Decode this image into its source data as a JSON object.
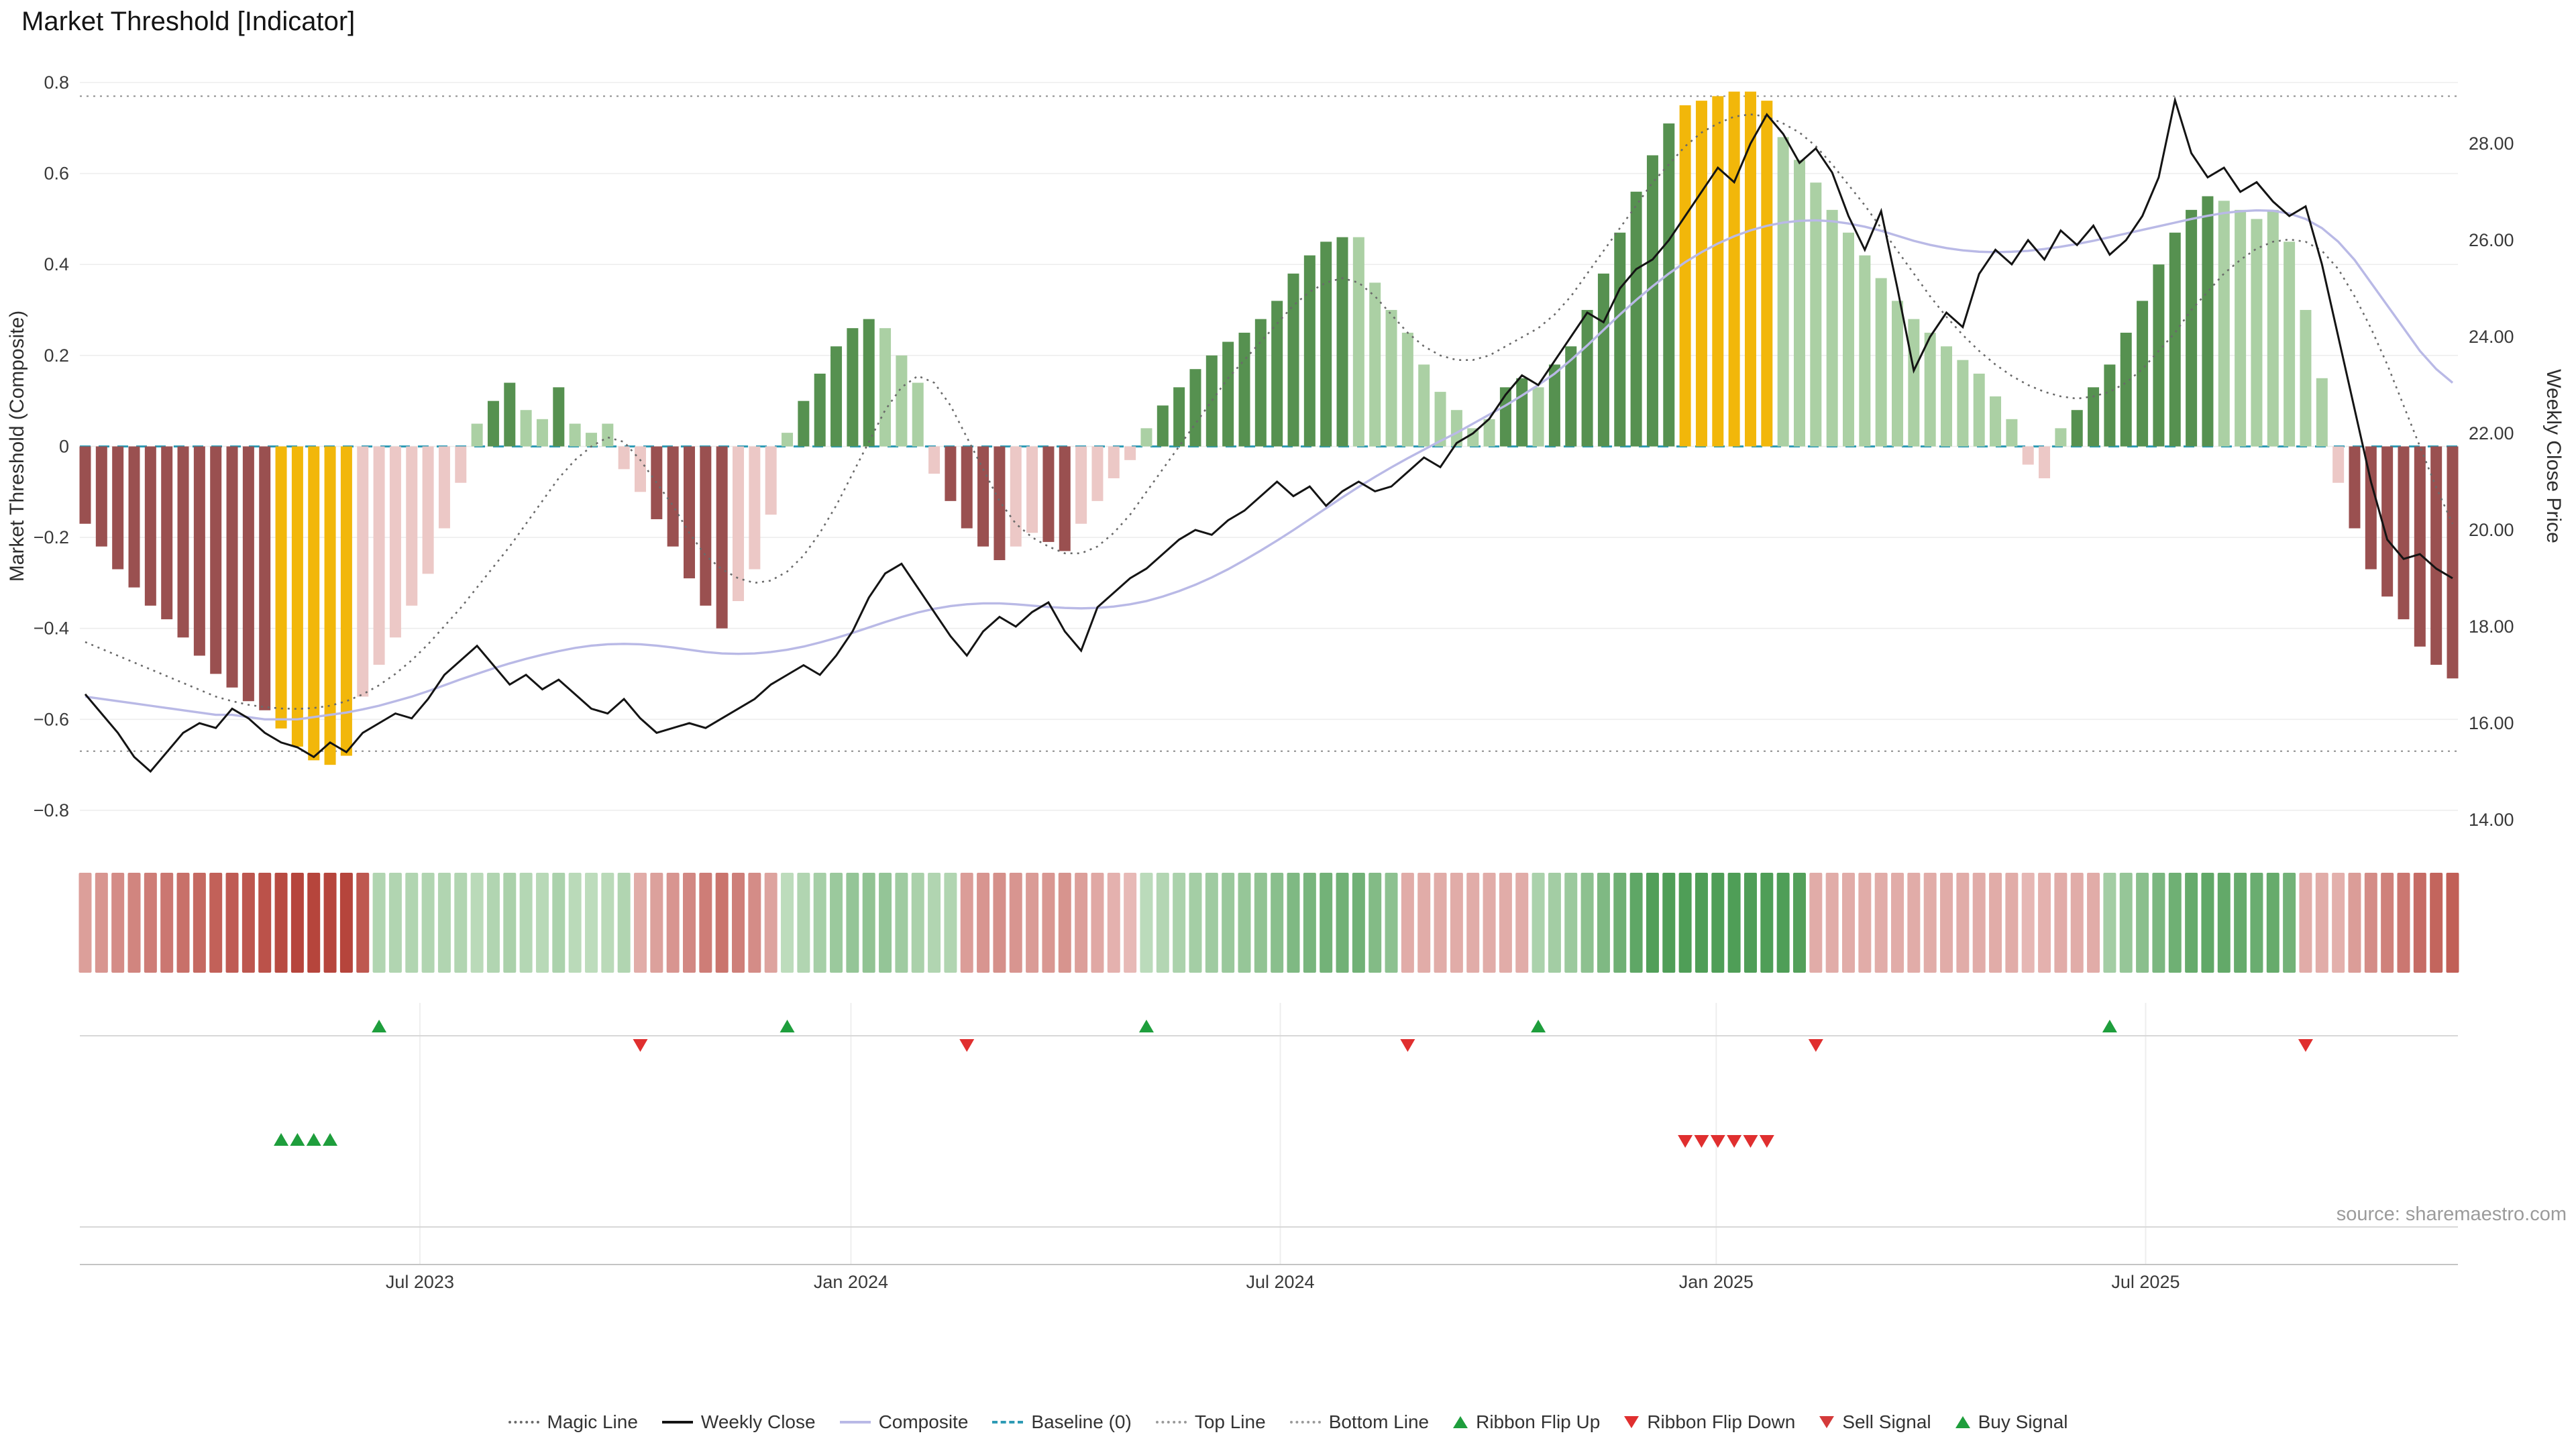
{
  "title": "Market Threshold [Indicator]",
  "source": "source: sharemaestro.com",
  "axes": {
    "left_label": "Market Threshold (Composite)",
    "right_label": "Weekly Close Price",
    "left_ticks": [
      [
        "0.8",
        0.8
      ],
      [
        "0.6",
        0.6
      ],
      [
        "0.4",
        0.4
      ],
      [
        "0.2",
        0.2
      ],
      [
        "0",
        0
      ],
      [
        "−0.2",
        -0.2
      ],
      [
        "−0.4",
        -0.4
      ],
      [
        "−0.6",
        -0.6
      ],
      [
        "−0.8",
        -0.8
      ]
    ],
    "right_ticks": [
      [
        "28.00",
        28
      ],
      [
        "26.00",
        26
      ],
      [
        "24.00",
        24
      ],
      [
        "22.00",
        22
      ],
      [
        "20.00",
        20
      ],
      [
        "18.00",
        18
      ],
      [
        "16.00",
        16
      ],
      [
        "14.00",
        14
      ]
    ],
    "x_ticks": [
      {
        "label": "Jul 2023",
        "week": 20.5
      },
      {
        "label": "Jan 2024",
        "week": 46.9
      },
      {
        "label": "Jul 2024",
        "week": 73.2
      },
      {
        "label": "Jan 2025",
        "week": 99.9
      },
      {
        "label": "Jul 2025",
        "week": 126.2
      }
    ]
  },
  "colors": {
    "bar": {
      "dr": "#9a5050",
      "lr": "#ecc8c6",
      "y": "#f2b70a",
      "lg": "#abd0a4",
      "dg": "#569150"
    },
    "ribbon": {
      "red_dark": "#b6453c",
      "red_light": "#f2d4d2",
      "green_dark": "#4f9e57",
      "green_light": "#d7ebd4"
    },
    "signal_up": "#1e9e3c",
    "signal_down": "#e02f2f",
    "weekly_close": "#141414",
    "composite_line": "#b9b9e6",
    "magic_line": "#6a6a6a",
    "baseline": "#2e9bb5",
    "threshold_lines": "#8c8c8c",
    "grid": "#ededed"
  },
  "chart_data": {
    "type": "bar",
    "frequency": "weekly",
    "x_range": [
      "Feb 2023",
      "Dec 2025"
    ],
    "left_axis": {
      "label": "Market Threshold (Composite)",
      "min": -0.8,
      "max": 0.8
    },
    "right_axis": {
      "label": "Weekly Close Price",
      "min": 14,
      "max": 28
    },
    "top_line_value": 0.77,
    "bottom_line_value": -0.67,
    "baseline_value": 0,
    "threshold_bars": [
      [
        -0.17,
        "dr"
      ],
      [
        -0.22,
        "dr"
      ],
      [
        -0.27,
        "dr"
      ],
      [
        -0.31,
        "dr"
      ],
      [
        -0.35,
        "dr"
      ],
      [
        -0.38,
        "dr"
      ],
      [
        -0.42,
        "dr"
      ],
      [
        -0.46,
        "dr"
      ],
      [
        -0.5,
        "dr"
      ],
      [
        -0.53,
        "dr"
      ],
      [
        -0.56,
        "dr"
      ],
      [
        -0.58,
        "dr"
      ],
      [
        -0.62,
        "y"
      ],
      [
        -0.66,
        "y"
      ],
      [
        -0.69,
        "y"
      ],
      [
        -0.7,
        "y"
      ],
      [
        -0.68,
        "y"
      ],
      [
        -0.55,
        "lr"
      ],
      [
        -0.48,
        "lr"
      ],
      [
        -0.42,
        "lr"
      ],
      [
        -0.35,
        "lr"
      ],
      [
        -0.28,
        "lr"
      ],
      [
        -0.18,
        "lr"
      ],
      [
        -0.08,
        "lr"
      ],
      [
        0.05,
        "lg"
      ],
      [
        0.1,
        "dg"
      ],
      [
        0.14,
        "dg"
      ],
      [
        0.08,
        "lg"
      ],
      [
        0.06,
        "lg"
      ],
      [
        0.13,
        "dg"
      ],
      [
        0.05,
        "lg"
      ],
      [
        0.03,
        "lg"
      ],
      [
        0.05,
        "lg"
      ],
      [
        -0.05,
        "lr"
      ],
      [
        -0.1,
        "lr"
      ],
      [
        -0.16,
        "dr"
      ],
      [
        -0.22,
        "dr"
      ],
      [
        -0.29,
        "dr"
      ],
      [
        -0.35,
        "dr"
      ],
      [
        -0.4,
        "dr"
      ],
      [
        -0.34,
        "lr"
      ],
      [
        -0.27,
        "lr"
      ],
      [
        -0.15,
        "lr"
      ],
      [
        0.03,
        "lg"
      ],
      [
        0.1,
        "dg"
      ],
      [
        0.16,
        "dg"
      ],
      [
        0.22,
        "dg"
      ],
      [
        0.26,
        "dg"
      ],
      [
        0.28,
        "dg"
      ],
      [
        0.26,
        "lg"
      ],
      [
        0.2,
        "lg"
      ],
      [
        0.14,
        "lg"
      ],
      [
        -0.06,
        "lr"
      ],
      [
        -0.12,
        "dr"
      ],
      [
        -0.18,
        "dr"
      ],
      [
        -0.22,
        "dr"
      ],
      [
        -0.25,
        "dr"
      ],
      [
        -0.22,
        "lr"
      ],
      [
        -0.19,
        "lr"
      ],
      [
        -0.21,
        "dr"
      ],
      [
        -0.23,
        "dr"
      ],
      [
        -0.17,
        "lr"
      ],
      [
        -0.12,
        "lr"
      ],
      [
        -0.07,
        "lr"
      ],
      [
        -0.03,
        "lr"
      ],
      [
        0.04,
        "lg"
      ],
      [
        0.09,
        "dg"
      ],
      [
        0.13,
        "dg"
      ],
      [
        0.17,
        "dg"
      ],
      [
        0.2,
        "dg"
      ],
      [
        0.23,
        "dg"
      ],
      [
        0.25,
        "dg"
      ],
      [
        0.28,
        "dg"
      ],
      [
        0.32,
        "dg"
      ],
      [
        0.38,
        "dg"
      ],
      [
        0.42,
        "dg"
      ],
      [
        0.45,
        "dg"
      ],
      [
        0.46,
        "dg"
      ],
      [
        0.46,
        "lg"
      ],
      [
        0.36,
        "lg"
      ],
      [
        0.3,
        "lg"
      ],
      [
        0.25,
        "lg"
      ],
      [
        0.18,
        "lg"
      ],
      [
        0.12,
        "lg"
      ],
      [
        0.08,
        "lg"
      ],
      [
        0.04,
        "lg"
      ],
      [
        0.06,
        "lg"
      ],
      [
        0.13,
        "dg"
      ],
      [
        0.15,
        "dg"
      ],
      [
        0.13,
        "lg"
      ],
      [
        0.18,
        "dg"
      ],
      [
        0.22,
        "dg"
      ],
      [
        0.3,
        "dg"
      ],
      [
        0.38,
        "dg"
      ],
      [
        0.47,
        "dg"
      ],
      [
        0.56,
        "dg"
      ],
      [
        0.64,
        "dg"
      ],
      [
        0.71,
        "dg"
      ],
      [
        0.75,
        "y"
      ],
      [
        0.76,
        "y"
      ],
      [
        0.77,
        "y"
      ],
      [
        0.78,
        "y"
      ],
      [
        0.78,
        "y"
      ],
      [
        0.76,
        "y"
      ],
      [
        0.68,
        "lg"
      ],
      [
        0.63,
        "lg"
      ],
      [
        0.58,
        "lg"
      ],
      [
        0.52,
        "lg"
      ],
      [
        0.47,
        "lg"
      ],
      [
        0.42,
        "lg"
      ],
      [
        0.37,
        "lg"
      ],
      [
        0.32,
        "lg"
      ],
      [
        0.28,
        "lg"
      ],
      [
        0.25,
        "lg"
      ],
      [
        0.22,
        "lg"
      ],
      [
        0.19,
        "lg"
      ],
      [
        0.16,
        "lg"
      ],
      [
        0.11,
        "lg"
      ],
      [
        0.06,
        "lg"
      ],
      [
        -0.04,
        "lr"
      ],
      [
        -0.07,
        "lr"
      ],
      [
        0.04,
        "lg"
      ],
      [
        0.08,
        "dg"
      ],
      [
        0.13,
        "dg"
      ],
      [
        0.18,
        "dg"
      ],
      [
        0.25,
        "dg"
      ],
      [
        0.32,
        "dg"
      ],
      [
        0.4,
        "dg"
      ],
      [
        0.47,
        "dg"
      ],
      [
        0.52,
        "dg"
      ],
      [
        0.55,
        "dg"
      ],
      [
        0.54,
        "lg"
      ],
      [
        0.52,
        "lg"
      ],
      [
        0.5,
        "lg"
      ],
      [
        0.52,
        "lg"
      ],
      [
        0.45,
        "lg"
      ],
      [
        0.3,
        "lg"
      ],
      [
        0.15,
        "lg"
      ],
      [
        -0.08,
        "lr"
      ],
      [
        -0.18,
        "dr"
      ],
      [
        -0.27,
        "dr"
      ],
      [
        -0.33,
        "dr"
      ],
      [
        -0.38,
        "dr"
      ],
      [
        -0.44,
        "dr"
      ],
      [
        -0.48,
        "dr"
      ],
      [
        -0.51,
        "dr"
      ]
    ],
    "weekly_close": [
      16.6,
      16.2,
      15.8,
      15.3,
      15.0,
      15.4,
      15.8,
      16.0,
      15.9,
      16.3,
      16.1,
      15.8,
      15.6,
      15.5,
      15.3,
      15.6,
      15.4,
      15.8,
      16.0,
      16.2,
      16.1,
      16.5,
      17.0,
      17.3,
      17.6,
      17.2,
      16.8,
      17.0,
      16.7,
      16.9,
      16.6,
      16.3,
      16.2,
      16.5,
      16.1,
      15.8,
      15.9,
      16.0,
      15.9,
      16.1,
      16.3,
      16.5,
      16.8,
      17.0,
      17.2,
      17.0,
      17.4,
      17.9,
      18.6,
      19.1,
      19.3,
      18.8,
      18.3,
      17.8,
      17.4,
      17.9,
      18.2,
      18.0,
      18.3,
      18.5,
      17.9,
      17.5,
      18.4,
      18.7,
      19.0,
      19.2,
      19.5,
      19.8,
      20.0,
      19.9,
      20.2,
      20.4,
      20.7,
      21.0,
      20.7,
      20.9,
      20.5,
      20.8,
      21.0,
      20.8,
      20.9,
      21.2,
      21.5,
      21.3,
      21.8,
      22.0,
      22.3,
      22.8,
      23.2,
      23.0,
      23.5,
      24.0,
      24.5,
      24.3,
      25.0,
      25.4,
      25.6,
      26.0,
      26.5,
      27.0,
      27.5,
      27.2,
      28.0,
      28.6,
      28.2,
      27.6,
      27.9,
      27.4,
      26.5,
      25.8,
      26.6,
      25.0,
      23.3,
      24.0,
      24.5,
      24.2,
      25.3,
      25.8,
      25.5,
      26.0,
      25.6,
      26.2,
      25.9,
      26.3,
      25.7,
      26.0,
      26.5,
      27.3,
      28.9,
      27.8,
      27.3,
      27.5,
      27.0,
      27.2,
      26.8,
      26.5,
      26.7,
      25.5,
      24.0,
      22.5,
      21.0,
      19.8,
      19.4,
      19.5,
      19.2,
      19.0
    ],
    "composite": [
      -0.55,
      -0.555,
      -0.56,
      -0.565,
      -0.57,
      -0.575,
      -0.58,
      -0.585,
      -0.59,
      -0.59,
      -0.595,
      -0.6,
      -0.6,
      -0.6,
      -0.595,
      -0.59,
      -0.585,
      -0.578,
      -0.57,
      -0.56,
      -0.55,
      -0.538,
      -0.525,
      -0.512,
      -0.5,
      -0.488,
      -0.477,
      -0.467,
      -0.458,
      -0.45,
      -0.443,
      -0.438,
      -0.435,
      -0.434,
      -0.435,
      -0.438,
      -0.442,
      -0.447,
      -0.452,
      -0.455,
      -0.456,
      -0.455,
      -0.452,
      -0.447,
      -0.44,
      -0.431,
      -0.421,
      -0.41,
      -0.398,
      -0.386,
      -0.375,
      -0.365,
      -0.357,
      -0.351,
      -0.347,
      -0.345,
      -0.345,
      -0.347,
      -0.35,
      -0.353,
      -0.355,
      -0.356,
      -0.355,
      -0.352,
      -0.347,
      -0.34,
      -0.33,
      -0.318,
      -0.304,
      -0.288,
      -0.27,
      -0.25,
      -0.229,
      -0.207,
      -0.184,
      -0.16,
      -0.136,
      -0.112,
      -0.089,
      -0.067,
      -0.046,
      -0.026,
      -0.007,
      0.012,
      0.03,
      0.05,
      0.07,
      0.09,
      0.112,
      0.135,
      0.16,
      0.19,
      0.222,
      0.256,
      0.29,
      0.322,
      0.352,
      0.38,
      0.405,
      0.427,
      0.446,
      0.462,
      0.475,
      0.485,
      0.492,
      0.496,
      0.497,
      0.495,
      0.49,
      0.483,
      0.474,
      0.463,
      0.452,
      0.443,
      0.436,
      0.431,
      0.428,
      0.427,
      0.428,
      0.43,
      0.434,
      0.439,
      0.445,
      0.452,
      0.46,
      0.468,
      0.476,
      0.484,
      0.492,
      0.5,
      0.507,
      0.513,
      0.517,
      0.519,
      0.518,
      0.512,
      0.5,
      0.48,
      0.45,
      0.41,
      0.36,
      0.31,
      0.26,
      0.21,
      0.17,
      0.14
    ],
    "magic_line": [
      -0.43,
      -0.445,
      -0.46,
      -0.475,
      -0.49,
      -0.505,
      -0.52,
      -0.535,
      -0.55,
      -0.56,
      -0.568,
      -0.573,
      -0.576,
      -0.577,
      -0.575,
      -0.57,
      -0.56,
      -0.545,
      -0.525,
      -0.5,
      -0.47,
      -0.435,
      -0.395,
      -0.355,
      -0.31,
      -0.265,
      -0.22,
      -0.17,
      -0.12,
      -0.07,
      -0.03,
      0.0,
      0.02,
      0.01,
      -0.03,
      -0.08,
      -0.13,
      -0.19,
      -0.24,
      -0.27,
      -0.29,
      -0.3,
      -0.295,
      -0.275,
      -0.24,
      -0.19,
      -0.13,
      -0.06,
      0.01,
      0.08,
      0.13,
      0.155,
      0.14,
      0.09,
      0.02,
      -0.05,
      -0.12,
      -0.17,
      -0.2,
      -0.22,
      -0.235,
      -0.235,
      -0.22,
      -0.19,
      -0.15,
      -0.1,
      -0.05,
      0.0,
      0.05,
      0.1,
      0.15,
      0.19,
      0.23,
      0.27,
      0.31,
      0.34,
      0.36,
      0.37,
      0.36,
      0.33,
      0.29,
      0.25,
      0.22,
      0.2,
      0.19,
      0.19,
      0.2,
      0.22,
      0.24,
      0.26,
      0.29,
      0.33,
      0.38,
      0.43,
      0.48,
      0.53,
      0.58,
      0.62,
      0.66,
      0.69,
      0.71,
      0.725,
      0.73,
      0.725,
      0.71,
      0.69,
      0.66,
      0.62,
      0.575,
      0.53,
      0.48,
      0.43,
      0.38,
      0.33,
      0.285,
      0.245,
      0.21,
      0.18,
      0.155,
      0.135,
      0.12,
      0.11,
      0.105,
      0.11,
      0.12,
      0.14,
      0.17,
      0.21,
      0.25,
      0.3,
      0.34,
      0.38,
      0.41,
      0.435,
      0.45,
      0.455,
      0.45,
      0.43,
      0.39,
      0.33,
      0.26,
      0.18,
      0.09,
      0.0,
      -0.09,
      -0.17
    ],
    "ribbon_flip_up_weeks": [
      18,
      43,
      65,
      89,
      124
    ],
    "ribbon_flip_down_weeks": [
      34,
      54,
      81,
      106,
      136
    ],
    "buy_signal_weeks": [
      12,
      13,
      14,
      15
    ],
    "sell_signal_weeks": [
      98,
      99,
      100,
      101,
      102,
      103
    ]
  },
  "legend": [
    {
      "label": "Magic Line",
      "marker": "dotted-line",
      "color": "#6a6a6a"
    },
    {
      "label": "Weekly Close",
      "marker": "solid-line",
      "color": "#141414"
    },
    {
      "label": "Composite",
      "marker": "solid-line",
      "color": "#b9b9e6"
    },
    {
      "label": "Baseline (0)",
      "marker": "dashed-line",
      "color": "#2e9bb5"
    },
    {
      "label": "Top Line",
      "marker": "dotted-line",
      "color": "#9a9a9a"
    },
    {
      "label": "Bottom Line",
      "marker": "dotted-line",
      "color": "#9a9a9a"
    },
    {
      "label": "Ribbon Flip Up",
      "marker": "triangle-up",
      "color": "#1e9e3c"
    },
    {
      "label": "Ribbon Flip Down",
      "marker": "triangle-down",
      "color": "#e02f2f"
    },
    {
      "label": "Sell Signal",
      "marker": "triangle-down",
      "color": "#d43a3a"
    },
    {
      "label": "Buy Signal",
      "marker": "triangle-up",
      "color": "#1e9e3c"
    }
  ]
}
